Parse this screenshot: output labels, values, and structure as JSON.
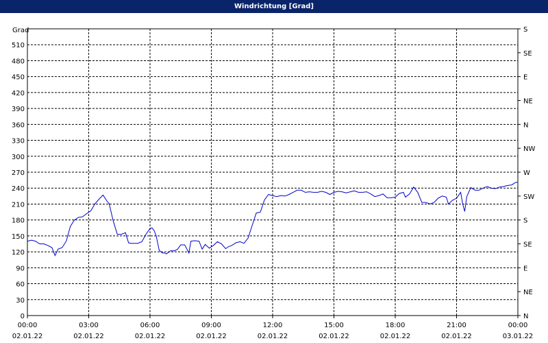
{
  "window": {
    "title": "Windrichtung [Grad]"
  },
  "chart_data": {
    "type": "line",
    "title": "Windrichtung [Grad]",
    "ylabel": "Grad",
    "ylim": [
      0,
      540
    ],
    "xlim_hours": [
      0,
      24
    ],
    "grid": true,
    "y_ticks": [
      0,
      30,
      60,
      90,
      120,
      150,
      180,
      210,
      240,
      270,
      300,
      330,
      360,
      390,
      420,
      450,
      480,
      510
    ],
    "right_ticks": [
      {
        "value": 0,
        "label": "N"
      },
      {
        "value": 45,
        "label": "NE"
      },
      {
        "value": 90,
        "label": "E"
      },
      {
        "value": 135,
        "label": "SE"
      },
      {
        "value": 180,
        "label": "S"
      },
      {
        "value": 225,
        "label": "SW"
      },
      {
        "value": 270,
        "label": "W"
      },
      {
        "value": 315,
        "label": "NW"
      },
      {
        "value": 360,
        "label": "N"
      },
      {
        "value": 405,
        "label": "NE"
      },
      {
        "value": 450,
        "label": "E"
      },
      {
        "value": 495,
        "label": "SE"
      },
      {
        "value": 540,
        "label": "S"
      }
    ],
    "x_ticks": [
      {
        "hour": 0,
        "time": "00:00",
        "date": "02.01.22"
      },
      {
        "hour": 3,
        "time": "03:00",
        "date": "02.01.22"
      },
      {
        "hour": 6,
        "time": "06:00",
        "date": "02.01.22"
      },
      {
        "hour": 9,
        "time": "09:00",
        "date": "02.01.22"
      },
      {
        "hour": 12,
        "time": "12:00",
        "date": "02.01.22"
      },
      {
        "hour": 15,
        "time": "15:00",
        "date": "02.01.22"
      },
      {
        "hour": 18,
        "time": "18:00",
        "date": "02.01.22"
      },
      {
        "hour": 21,
        "time": "21:00",
        "date": "02.01.22"
      },
      {
        "hour": 24,
        "time": "00:00",
        "date": "03.01.22"
      }
    ],
    "series": [
      {
        "color": "#0000cc",
        "points": [
          [
            0.0,
            140
          ],
          [
            0.2,
            142
          ],
          [
            0.4,
            140
          ],
          [
            0.6,
            135
          ],
          [
            0.8,
            135
          ],
          [
            1.0,
            132
          ],
          [
            1.2,
            128
          ],
          [
            1.35,
            113
          ],
          [
            1.5,
            125
          ],
          [
            1.7,
            128
          ],
          [
            1.9,
            140
          ],
          [
            2.1,
            168
          ],
          [
            2.3,
            180
          ],
          [
            2.5,
            185
          ],
          [
            2.7,
            186
          ],
          [
            2.9,
            192
          ],
          [
            3.1,
            197
          ],
          [
            3.3,
            210
          ],
          [
            3.5,
            219
          ],
          [
            3.7,
            227
          ],
          [
            3.9,
            215
          ],
          [
            4.0,
            211
          ],
          [
            4.2,
            178
          ],
          [
            4.4,
            153
          ],
          [
            4.6,
            153
          ],
          [
            4.8,
            156
          ],
          [
            4.95,
            137
          ],
          [
            5.1,
            136
          ],
          [
            5.4,
            136
          ],
          [
            5.6,
            139
          ],
          [
            5.8,
            153
          ],
          [
            6.0,
            164
          ],
          [
            6.1,
            165
          ],
          [
            6.2,
            160
          ],
          [
            6.3,
            150
          ],
          [
            6.45,
            123
          ],
          [
            6.6,
            118
          ],
          [
            6.7,
            118
          ],
          [
            6.8,
            116
          ],
          [
            7.0,
            122
          ],
          [
            7.2,
            122
          ],
          [
            7.35,
            125
          ],
          [
            7.5,
            133
          ],
          [
            7.7,
            133
          ],
          [
            7.9,
            118
          ],
          [
            8.0,
            140
          ],
          [
            8.2,
            141
          ],
          [
            8.4,
            140
          ],
          [
            8.55,
            125
          ],
          [
            8.7,
            134
          ],
          [
            8.9,
            127
          ],
          [
            9.1,
            132
          ],
          [
            9.3,
            139
          ],
          [
            9.5,
            135
          ],
          [
            9.7,
            126
          ],
          [
            9.85,
            130
          ],
          [
            10.0,
            132
          ],
          [
            10.2,
            137
          ],
          [
            10.4,
            139
          ],
          [
            10.6,
            136
          ],
          [
            10.8,
            146
          ],
          [
            11.0,
            170
          ],
          [
            11.2,
            193
          ],
          [
            11.4,
            195
          ],
          [
            11.6,
            218
          ],
          [
            11.8,
            228
          ],
          [
            12.0,
            226
          ],
          [
            12.2,
            224
          ],
          [
            12.4,
            226
          ],
          [
            12.6,
            225
          ],
          [
            12.8,
            228
          ],
          [
            13.0,
            232
          ],
          [
            13.2,
            236
          ],
          [
            13.4,
            236
          ],
          [
            13.6,
            232
          ],
          [
            13.8,
            233
          ],
          [
            14.0,
            232
          ],
          [
            14.2,
            232
          ],
          [
            14.4,
            234
          ],
          [
            14.6,
            232
          ],
          [
            14.8,
            228
          ],
          [
            15.0,
            232
          ],
          [
            15.2,
            234
          ],
          [
            15.4,
            233
          ],
          [
            15.6,
            231
          ],
          [
            15.8,
            233
          ],
          [
            16.0,
            235
          ],
          [
            16.2,
            232
          ],
          [
            16.4,
            232
          ],
          [
            16.6,
            233
          ],
          [
            16.8,
            229
          ],
          [
            17.0,
            224
          ],
          [
            17.2,
            226
          ],
          [
            17.4,
            229
          ],
          [
            17.6,
            222
          ],
          [
            17.8,
            222
          ],
          [
            18.0,
            223
          ],
          [
            18.2,
            230
          ],
          [
            18.4,
            232
          ],
          [
            18.5,
            223
          ],
          [
            18.7,
            229
          ],
          [
            18.9,
            242
          ],
          [
            19.1,
            232
          ],
          [
            19.3,
            213
          ],
          [
            19.5,
            213
          ],
          [
            19.7,
            210
          ],
          [
            19.9,
            213
          ],
          [
            20.1,
            221
          ],
          [
            20.3,
            225
          ],
          [
            20.5,
            223
          ],
          [
            20.6,
            210
          ],
          [
            20.8,
            217
          ],
          [
            21.0,
            221
          ],
          [
            21.2,
            232
          ],
          [
            21.3,
            210
          ],
          [
            21.4,
            196
          ],
          [
            21.5,
            224
          ],
          [
            21.7,
            241
          ],
          [
            21.9,
            236
          ],
          [
            22.1,
            236
          ],
          [
            22.3,
            240
          ],
          [
            22.5,
            243
          ],
          [
            22.7,
            240
          ],
          [
            22.9,
            239
          ],
          [
            23.1,
            242
          ],
          [
            23.3,
            243
          ],
          [
            23.5,
            245
          ],
          [
            23.7,
            246
          ],
          [
            23.9,
            251
          ],
          [
            24.0,
            251
          ]
        ]
      }
    ]
  }
}
